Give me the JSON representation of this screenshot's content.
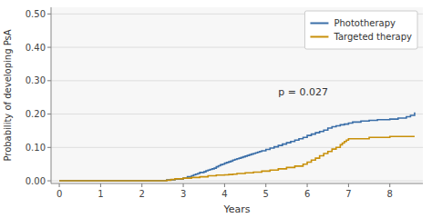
{
  "chart_data": {
    "type": "step",
    "xlabel": "Years",
    "ylabel": "Probability of developing PsA",
    "xlim": [
      -0.2,
      8.8
    ],
    "ylim": [
      -0.008,
      0.52
    ],
    "xticks": [
      0,
      1,
      2,
      3,
      4,
      5,
      6,
      7,
      8
    ],
    "yticks": [
      {
        "value": 0.0,
        "label": "0.00"
      },
      {
        "value": 0.1,
        "label": "0.10"
      },
      {
        "value": 0.2,
        "label": "0.20"
      },
      {
        "value": 0.3,
        "label": "0.30"
      },
      {
        "value": 0.4,
        "label": "0.40"
      },
      {
        "value": 0.5,
        "label": "0.50"
      }
    ],
    "grid": true,
    "legend": "upper-right",
    "annotations": [
      {
        "text": "p = 0.027",
        "x": 5.3,
        "y": 0.255
      }
    ],
    "series": [
      {
        "name": "Phototherapy",
        "color": "#3a6ea8",
        "x": [
          0.0,
          0.5,
          1.0,
          1.5,
          2.0,
          2.3,
          2.6,
          2.8,
          3.0,
          3.1,
          3.2,
          3.25,
          3.3,
          3.35,
          3.4,
          3.5,
          3.55,
          3.6,
          3.65,
          3.7,
          3.75,
          3.8,
          3.85,
          3.9,
          3.95,
          4.0,
          4.05,
          4.1,
          4.15,
          4.2,
          4.25,
          4.3,
          4.35,
          4.4,
          4.45,
          4.5,
          4.55,
          4.6,
          4.65,
          4.7,
          4.75,
          4.8,
          4.85,
          4.9,
          5.0,
          5.1,
          5.2,
          5.3,
          5.4,
          5.5,
          5.6,
          5.7,
          5.8,
          5.9,
          6.0,
          6.1,
          6.2,
          6.3,
          6.4,
          6.5,
          6.6,
          6.7,
          6.8,
          6.9,
          7.0,
          7.1,
          7.3,
          7.5,
          7.7,
          8.0,
          8.2,
          8.4,
          8.5,
          8.6
        ],
        "values": [
          0.0,
          0.0,
          0.0,
          0.0,
          0.0,
          0.0,
          0.003,
          0.005,
          0.008,
          0.012,
          0.015,
          0.018,
          0.02,
          0.022,
          0.025,
          0.027,
          0.03,
          0.032,
          0.034,
          0.036,
          0.038,
          0.042,
          0.045,
          0.048,
          0.05,
          0.053,
          0.055,
          0.057,
          0.059,
          0.062,
          0.064,
          0.066,
          0.068,
          0.07,
          0.072,
          0.074,
          0.076,
          0.078,
          0.08,
          0.082,
          0.084,
          0.086,
          0.088,
          0.09,
          0.094,
          0.098,
          0.102,
          0.106,
          0.11,
          0.114,
          0.118,
          0.122,
          0.126,
          0.13,
          0.136,
          0.14,
          0.144,
          0.148,
          0.152,
          0.158,
          0.162,
          0.165,
          0.168,
          0.17,
          0.173,
          0.176,
          0.179,
          0.181,
          0.183,
          0.185,
          0.188,
          0.192,
          0.196,
          0.205
        ]
      },
      {
        "name": "Targeted therapy",
        "color": "#c8900a",
        "x": [
          0.0,
          0.5,
          1.0,
          1.5,
          2.0,
          2.5,
          2.6,
          2.7,
          2.8,
          3.0,
          3.2,
          3.4,
          3.6,
          3.8,
          4.0,
          4.1,
          4.2,
          4.3,
          4.5,
          4.7,
          4.9,
          5.1,
          5.3,
          5.5,
          5.7,
          5.9,
          6.0,
          6.1,
          6.2,
          6.3,
          6.4,
          6.5,
          6.6,
          6.7,
          6.8,
          6.85,
          6.9,
          6.95,
          7.0,
          7.5,
          8.0,
          8.6
        ],
        "values": [
          0.0,
          0.0,
          0.0,
          0.0,
          0.0,
          0.0,
          0.002,
          0.004,
          0.006,
          0.008,
          0.01,
          0.012,
          0.015,
          0.017,
          0.018,
          0.019,
          0.02,
          0.022,
          0.024,
          0.026,
          0.029,
          0.032,
          0.036,
          0.04,
          0.044,
          0.05,
          0.056,
          0.062,
          0.068,
          0.075,
          0.082,
          0.088,
          0.095,
          0.1,
          0.108,
          0.113,
          0.118,
          0.122,
          0.126,
          0.13,
          0.133,
          0.133
        ]
      }
    ]
  }
}
